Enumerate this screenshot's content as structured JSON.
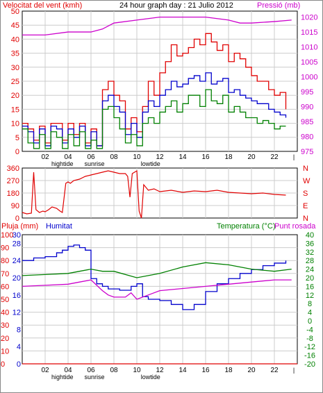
{
  "header": {
    "title": "24 hour graph day : 21 Julio 2012",
    "wind_label": "Velocitat del vent (kmh)",
    "pressure_label": "Pressió (mb)"
  },
  "colors": {
    "red": "#e00000",
    "blue": "#0000cc",
    "green": "#008000",
    "magenta": "#cc00cc",
    "grid": "#cccccc"
  },
  "time_axis": {
    "ticks": [
      "02",
      "04",
      "06",
      "08",
      "10",
      "12",
      "14",
      "16",
      "18",
      "20",
      "22"
    ],
    "events": {
      "hightide": "hightide",
      "sunrise": "sunrise",
      "lowtide": "lowtide"
    }
  },
  "chart_data": [
    {
      "type": "line",
      "title": "24 hour graph day : 21 Julio 2012",
      "x_unit": "hour",
      "xlim": [
        0,
        24
      ],
      "ylabel_left": "Velocitat del vent (kmh)",
      "ylabel_right": "Pressió (mb)",
      "y_left_ticks": [
        0,
        5,
        10,
        15,
        20,
        25,
        30,
        35,
        40,
        45,
        50
      ],
      "y_right_ticks": [
        975,
        980,
        985,
        990,
        995,
        1000,
        1005,
        1010,
        1015,
        1020
      ],
      "ylim_left": [
        0,
        50
      ],
      "ylim_right": [
        975,
        1022
      ],
      "grid": true,
      "series": [
        {
          "axis": "left",
          "color": "#e00000",
          "x": [
            0,
            0.5,
            1,
            1.5,
            2,
            2.5,
            3,
            3.5,
            4,
            4.5,
            5,
            5.5,
            6,
            6.5,
            7,
            7.5,
            8,
            8.5,
            9,
            9.5,
            10,
            10.5,
            11,
            11.5,
            12,
            12.5,
            13,
            13.5,
            14,
            14.5,
            15,
            15.5,
            16,
            16.5,
            17,
            17.5,
            18,
            18.5,
            19,
            19.5,
            20,
            20.5,
            21,
            21.5,
            22,
            22.5,
            23
          ],
          "values": [
            10,
            8,
            4,
            9,
            3,
            10,
            10,
            4,
            10,
            6,
            10,
            3,
            8,
            2,
            22,
            25,
            20,
            18,
            8,
            12,
            7,
            16,
            25,
            20,
            28,
            32,
            38,
            34,
            35,
            37,
            40,
            38,
            42,
            39,
            36,
            38,
            32,
            35,
            33,
            30,
            27,
            25,
            25,
            22,
            20,
            21,
            15
          ]
        },
        {
          "axis": "left",
          "color": "#0000cc",
          "x": [
            0,
            0.5,
            1,
            1.5,
            2,
            2.5,
            3,
            3.5,
            4,
            4.5,
            5,
            5.5,
            6,
            6.5,
            7,
            7.5,
            8,
            8.5,
            9,
            9.5,
            10,
            10.5,
            11,
            11.5,
            12,
            12.5,
            13,
            13.5,
            14,
            14.5,
            15,
            15.5,
            16,
            16.5,
            17,
            17.5,
            18,
            18.5,
            19,
            19.5,
            20,
            20.5,
            21,
            21.5,
            22,
            22.5,
            23
          ],
          "values": [
            9,
            7,
            3,
            8,
            2,
            9,
            8,
            3,
            8,
            5,
            9,
            2,
            7,
            2,
            18,
            20,
            16,
            14,
            6,
            10,
            5,
            14,
            18,
            16,
            20,
            22,
            25,
            23,
            24,
            26,
            27,
            25,
            28,
            24,
            25,
            26,
            21,
            22,
            20,
            19,
            18,
            17,
            17,
            15,
            14,
            13,
            12
          ]
        },
        {
          "axis": "left",
          "color": "#008000",
          "x": [
            0,
            0.5,
            1,
            1.5,
            2,
            2.5,
            3,
            3.5,
            4,
            4.5,
            5,
            5.5,
            6,
            6.5,
            7,
            7.5,
            8,
            8.5,
            9,
            9.5,
            10,
            10.5,
            11,
            11.5,
            12,
            12.5,
            13,
            13.5,
            14,
            14.5,
            15,
            15.5,
            16,
            16.5,
            17,
            17.5,
            18,
            18.5,
            19,
            19.5,
            20,
            20.5,
            21,
            21.5,
            22,
            22.5,
            23
          ],
          "values": [
            8,
            3,
            1,
            6,
            1,
            7,
            5,
            1,
            6,
            2,
            7,
            1,
            4,
            1,
            15,
            16,
            12,
            8,
            3,
            6,
            2,
            10,
            12,
            10,
            14,
            16,
            18,
            14,
            17,
            20,
            20,
            16,
            22,
            18,
            17,
            20,
            14,
            16,
            14,
            12,
            12,
            10,
            11,
            10,
            8,
            9,
            9
          ]
        },
        {
          "axis": "right",
          "color": "#cc00cc",
          "x": [
            0,
            2,
            4,
            6,
            7,
            8,
            10,
            12,
            14,
            16,
            18,
            19,
            20,
            22,
            23.5
          ],
          "values": [
            1014,
            1014,
            1015,
            1015,
            1016,
            1018,
            1019,
            1020,
            1020,
            1020,
            1019,
            1018,
            1018,
            1018.5,
            1019
          ]
        }
      ]
    },
    {
      "type": "scatter",
      "x_unit": "hour",
      "xlim": [
        0,
        24
      ],
      "y_left_ticks": [
        0,
        90,
        180,
        270,
        360
      ],
      "y_right_ticks": [
        "N",
        "W",
        "S",
        "E",
        "N"
      ],
      "ylim": [
        0,
        360
      ],
      "grid": true,
      "series": [
        {
          "color": "#e00000",
          "x": [
            0,
            0.4,
            0.8,
            1.0,
            1.2,
            1.5,
            1.8,
            2.0,
            2.3,
            2.6,
            3.0,
            3.3,
            3.5,
            3.8,
            4.0,
            4.2,
            4.5,
            5,
            5.5,
            6,
            6.5,
            7,
            7.5,
            8,
            8.5,
            9,
            9.2,
            9.4,
            9.6,
            9.8,
            10,
            10.2,
            10.4,
            10.6,
            11,
            11.5,
            12,
            13,
            14,
            15,
            16,
            17,
            18,
            19,
            20,
            21,
            22,
            23
          ],
          "values": [
            40,
            30,
            35,
            330,
            60,
            40,
            50,
            45,
            60,
            80,
            70,
            50,
            40,
            250,
            260,
            250,
            270,
            280,
            300,
            310,
            320,
            330,
            340,
            330,
            320,
            320,
            300,
            150,
            320,
            330,
            340,
            50,
            0,
            240,
            200,
            210,
            190,
            200,
            185,
            195,
            190,
            200,
            185,
            180,
            175,
            180,
            170,
            165
          ]
        }
      ]
    },
    {
      "type": "line",
      "x_unit": "hour",
      "xlim": [
        0,
        24
      ],
      "ylabel_left_1": "Pluja (mm)",
      "ylabel_left_2": "Humitat",
      "ylabel_right": "Temperatura (°C)",
      "ylabel_right_2": "Punt rosada",
      "y_rain_ticks": [
        0,
        10,
        20,
        30,
        40,
        50,
        60,
        70,
        80,
        90,
        100
      ],
      "y_hum_ticks": [
        0,
        4,
        8,
        12,
        16,
        20,
        24,
        28,
        30
      ],
      "y_temp_ticks": [
        -20,
        -16,
        -12,
        -8,
        -4,
        0,
        4,
        8,
        12,
        16,
        20,
        24,
        28,
        32,
        36,
        40
      ],
      "ylim_rain": [
        0,
        100
      ],
      "ylim_temp": [
        -20,
        40
      ],
      "grid": true,
      "series": [
        {
          "name": "Humitat",
          "axis": "rain",
          "color": "#0000cc",
          "x": [
            0,
            1,
            2,
            3,
            3.5,
            4,
            4.5,
            5,
            5.5,
            6,
            6.5,
            7,
            7.5,
            8,
            8.5,
            9,
            9.5,
            10,
            10.5,
            11,
            12,
            13,
            14,
            15,
            16,
            17,
            18,
            19,
            20,
            21,
            22,
            23
          ],
          "values": [
            80,
            82,
            83,
            86,
            88,
            91,
            92,
            90,
            88,
            66,
            62,
            60,
            58,
            58,
            57,
            57,
            60,
            62,
            52,
            50,
            49,
            46,
            42,
            46,
            56,
            62,
            66,
            70,
            73,
            76,
            78,
            80
          ]
        },
        {
          "name": "Temperatura (°C)",
          "axis": "temp",
          "color": "#008000",
          "x": [
            0,
            2,
            4,
            5,
            6,
            7,
            8,
            10,
            12,
            14,
            16,
            18,
            19,
            20,
            22,
            23.5
          ],
          "values": [
            21,
            21.5,
            22,
            23,
            24,
            23,
            23,
            20,
            22,
            25,
            27,
            26,
            25,
            24,
            23,
            24
          ]
        },
        {
          "name": "Punt rosada",
          "axis": "temp",
          "color": "#cc00cc",
          "x": [
            0,
            2,
            4,
            5,
            6,
            7,
            7.5,
            8,
            9,
            9.5,
            10,
            11,
            12,
            14,
            16,
            18,
            20,
            22,
            23.5
          ],
          "values": [
            16,
            16.5,
            17,
            18,
            19,
            14,
            12,
            11,
            11,
            13,
            10,
            12,
            14,
            15,
            16,
            17,
            18,
            19,
            19
          ]
        },
        {
          "name": "Pluja (mm)",
          "axis": "rain",
          "color": "#e00000",
          "x": [
            0,
            24
          ],
          "values": [
            0,
            0
          ]
        }
      ]
    }
  ]
}
